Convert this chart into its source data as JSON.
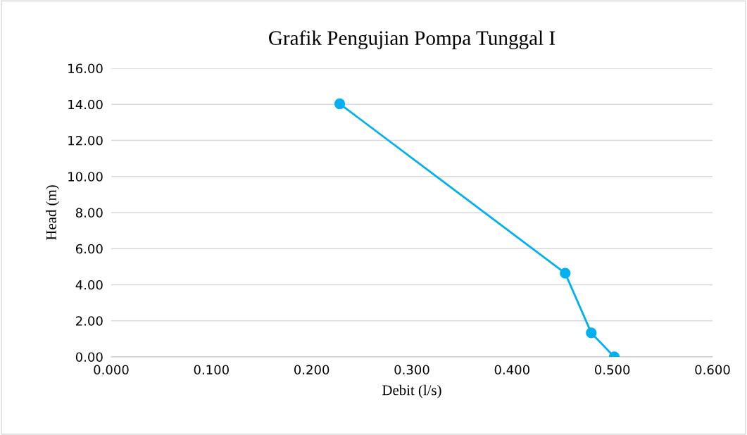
{
  "chart_data": {
    "type": "line",
    "title": "Grafik Pengujian Pompa Tunggal I",
    "xlabel": "Debit (l/s)",
    "ylabel": "Head (m)",
    "series": [
      {
        "color": "#00b0f0",
        "x": [
          0.228,
          0.453,
          0.479,
          0.502
        ],
        "values": [
          14.03,
          4.64,
          1.33,
          0.0
        ]
      }
    ],
    "marker": "circle",
    "grid": "y",
    "legend": false,
    "xlim": [
      0.0,
      0.6
    ],
    "xticks": [
      {
        "value": 0.0,
        "label": "0.000"
      },
      {
        "value": 0.1,
        "label": "0.100"
      },
      {
        "value": 0.2,
        "label": "0.200"
      },
      {
        "value": 0.3,
        "label": "0.300"
      },
      {
        "value": 0.4,
        "label": "0.400"
      },
      {
        "value": 0.5,
        "label": "0.500"
      },
      {
        "value": 0.6,
        "label": "0.600"
      }
    ],
    "ylim": [
      0.0,
      16.0
    ],
    "yticks": [
      {
        "value": 0,
        "label": "0.00"
      },
      {
        "value": 2,
        "label": "2.00"
      },
      {
        "value": 4,
        "label": "4.00"
      },
      {
        "value": 6,
        "label": "6.00"
      },
      {
        "value": 8,
        "label": "8.00"
      },
      {
        "value": 10,
        "label": "10.00"
      },
      {
        "value": 12,
        "label": "12.00"
      },
      {
        "value": 14,
        "label": "14.00"
      },
      {
        "value": 16,
        "label": "16.00"
      }
    ]
  }
}
